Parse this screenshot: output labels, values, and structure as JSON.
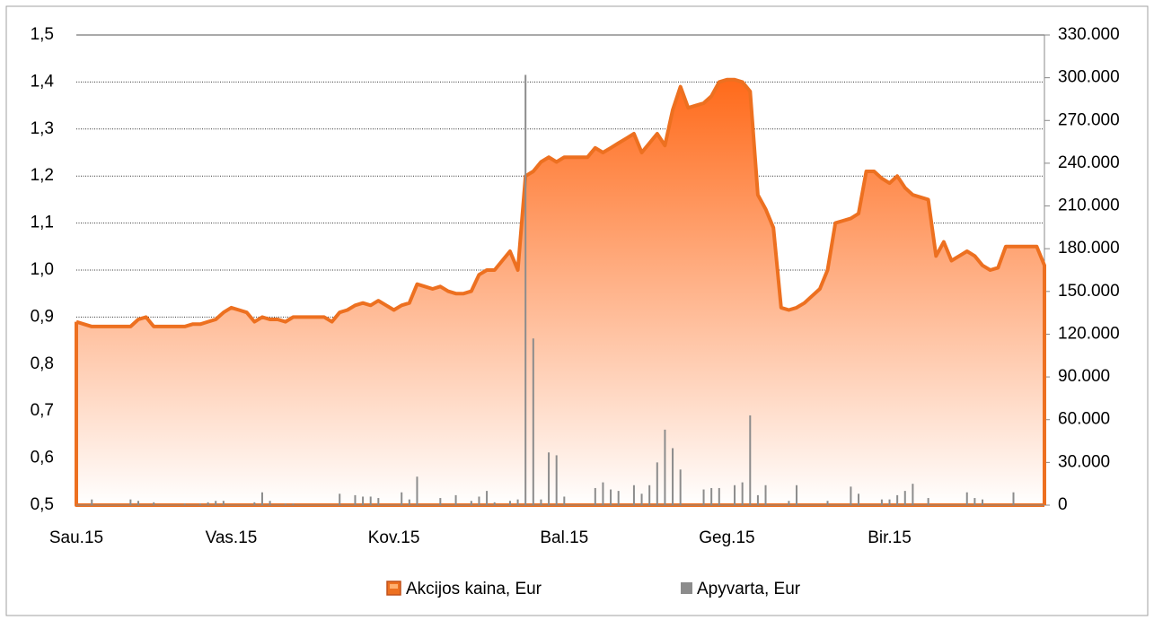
{
  "chart_data": {
    "type": "line",
    "categories": [
      "Sau.15",
      null,
      null,
      null,
      null,
      null,
      null,
      null,
      null,
      null,
      null,
      null,
      null,
      null,
      null,
      null,
      null,
      null,
      null,
      null,
      "Vas.15",
      null,
      null,
      null,
      null,
      null,
      null,
      null,
      null,
      null,
      null,
      null,
      null,
      null,
      null,
      null,
      null,
      null,
      null,
      null,
      null,
      "Kov.15",
      null,
      null,
      null,
      null,
      null,
      null,
      null,
      null,
      null,
      null,
      null,
      null,
      null,
      null,
      null,
      null,
      null,
      null,
      null,
      null,
      null,
      "Bal.15",
      null,
      null,
      null,
      null,
      null,
      null,
      null,
      null,
      null,
      null,
      null,
      null,
      null,
      null,
      null,
      null,
      null,
      null,
      null,
      null,
      "Geg.15",
      null,
      null,
      null,
      null,
      null,
      null,
      null,
      null,
      null,
      null,
      null,
      null,
      null,
      null,
      null,
      null,
      null,
      null,
      null,
      null,
      "Bir.15",
      null,
      null,
      null,
      null,
      null,
      null,
      null,
      null,
      null,
      null,
      null,
      null,
      null,
      null,
      null,
      null,
      null,
      null,
      null,
      null
    ],
    "series": [
      {
        "name": "Akcijos kaina, Eur",
        "color": "#ed7020",
        "values": [
          0.89,
          0.885,
          0.88,
          0.88,
          0.88,
          0.88,
          0.88,
          0.88,
          0.895,
          0.9,
          0.88,
          0.88,
          0.88,
          0.88,
          0.88,
          0.885,
          0.885,
          0.89,
          0.895,
          0.91,
          0.92,
          0.915,
          0.91,
          0.89,
          0.9,
          0.895,
          0.895,
          0.89,
          0.9,
          0.9,
          0.9,
          0.9,
          0.9,
          0.89,
          0.91,
          0.915,
          0.925,
          0.93,
          0.925,
          0.935,
          0.925,
          0.915,
          0.925,
          0.93,
          0.97,
          0.965,
          0.96,
          0.965,
          0.955,
          0.95,
          0.95,
          0.955,
          0.99,
          1.0,
          1.0,
          1.02,
          1.04,
          1.0,
          1.2,
          1.21,
          1.23,
          1.24,
          1.23,
          1.24,
          1.24,
          1.24,
          1.24,
          1.26,
          1.25,
          1.26,
          1.27,
          1.28,
          1.29,
          1.25,
          1.27,
          1.29,
          1.265,
          1.34,
          1.39,
          1.345,
          1.35,
          1.355,
          1.37,
          1.4,
          1.405,
          1.405,
          1.4,
          1.38,
          1.16,
          1.13,
          1.09,
          0.92,
          0.915,
          0.92,
          0.93,
          0.945,
          0.96,
          1.0,
          1.1,
          1.105,
          1.11,
          1.12,
          1.21,
          1.21,
          1.195,
          1.185,
          1.2,
          1.175,
          1.16,
          1.155,
          1.15,
          1.03,
          1.06,
          1.02,
          1.03,
          1.04,
          1.03,
          1.01,
          1.0,
          1.005,
          1.05,
          1.05,
          1.05,
          1.05,
          1.05,
          1.01
        ]
      },
      {
        "name": "Apyvarta, Eur",
        "color": "#8c8c8c",
        "axis": "y2",
        "values": [
          0,
          0,
          4000,
          0,
          0,
          0,
          0,
          4000,
          3000,
          0,
          2000,
          0,
          0,
          0,
          1000,
          0,
          1000,
          2000,
          3000,
          3000,
          0,
          0,
          0,
          2000,
          9000,
          3000,
          0,
          1000,
          1000,
          0,
          0,
          0,
          0,
          0,
          8000,
          0,
          7000,
          6000,
          6000,
          5000,
          0,
          0,
          9000,
          4000,
          20000,
          0,
          0,
          5000,
          0,
          7000,
          0,
          3000,
          6000,
          10000,
          2000,
          0,
          3000,
          4000,
          302000,
          117000,
          4000,
          37000,
          35000,
          6000,
          0,
          0,
          0,
          12000,
          16000,
          11000,
          10000,
          0,
          14000,
          8000,
          14000,
          30000,
          53000,
          40000,
          25000,
          0,
          0,
          11000,
          12000,
          12000,
          0,
          14000,
          16000,
          63000,
          7000,
          14000,
          0,
          0,
          3000,
          14000,
          0,
          0,
          0,
          3000,
          0,
          0,
          13000,
          8000,
          0,
          0,
          4000,
          4000,
          7000,
          10000,
          15000,
          0,
          5000,
          0,
          0,
          0,
          0,
          9000,
          5000,
          4000,
          0,
          0,
          0,
          9000,
          0,
          0,
          0,
          0
        ]
      }
    ],
    "ylim": [
      0.5,
      1.5
    ],
    "yticks": [
      {
        "value": 0.5,
        "label": "0,5"
      },
      {
        "value": 0.6,
        "label": "0,6"
      },
      {
        "value": 0.7,
        "label": "0,7"
      },
      {
        "value": 0.8,
        "label": "0,8"
      },
      {
        "value": 0.9,
        "label": "0,9"
      },
      {
        "value": 1.0,
        "label": "1,0"
      },
      {
        "value": 1.1,
        "label": "1,1"
      },
      {
        "value": 1.2,
        "label": "1,2"
      },
      {
        "value": 1.3,
        "label": "1,3"
      },
      {
        "value": 1.4,
        "label": "1,4"
      },
      {
        "value": 1.5,
        "label": "1,5"
      }
    ],
    "y2lim": [
      0,
      330000
    ],
    "y2ticks": [
      0,
      {
        "value": 30000,
        "label": "30.000"
      },
      {
        "value": 60000,
        "label": "60.000"
      },
      {
        "value": 90000,
        "label": "90.000"
      },
      {
        "value": 120000,
        "label": "120.000"
      },
      {
        "value": 150000,
        "label": "150.000"
      },
      {
        "value": 180000,
        "label": "180.000"
      },
      {
        "value": 210000,
        "label": "210.000"
      },
      {
        "value": 240000,
        "label": "240.000"
      },
      {
        "value": 270000,
        "label": "270.000"
      },
      {
        "value": 300000,
        "label": "300.000"
      },
      {
        "value": 330000,
        "label": "330.000"
      }
    ],
    "grid": true,
    "legend": "bottom"
  }
}
